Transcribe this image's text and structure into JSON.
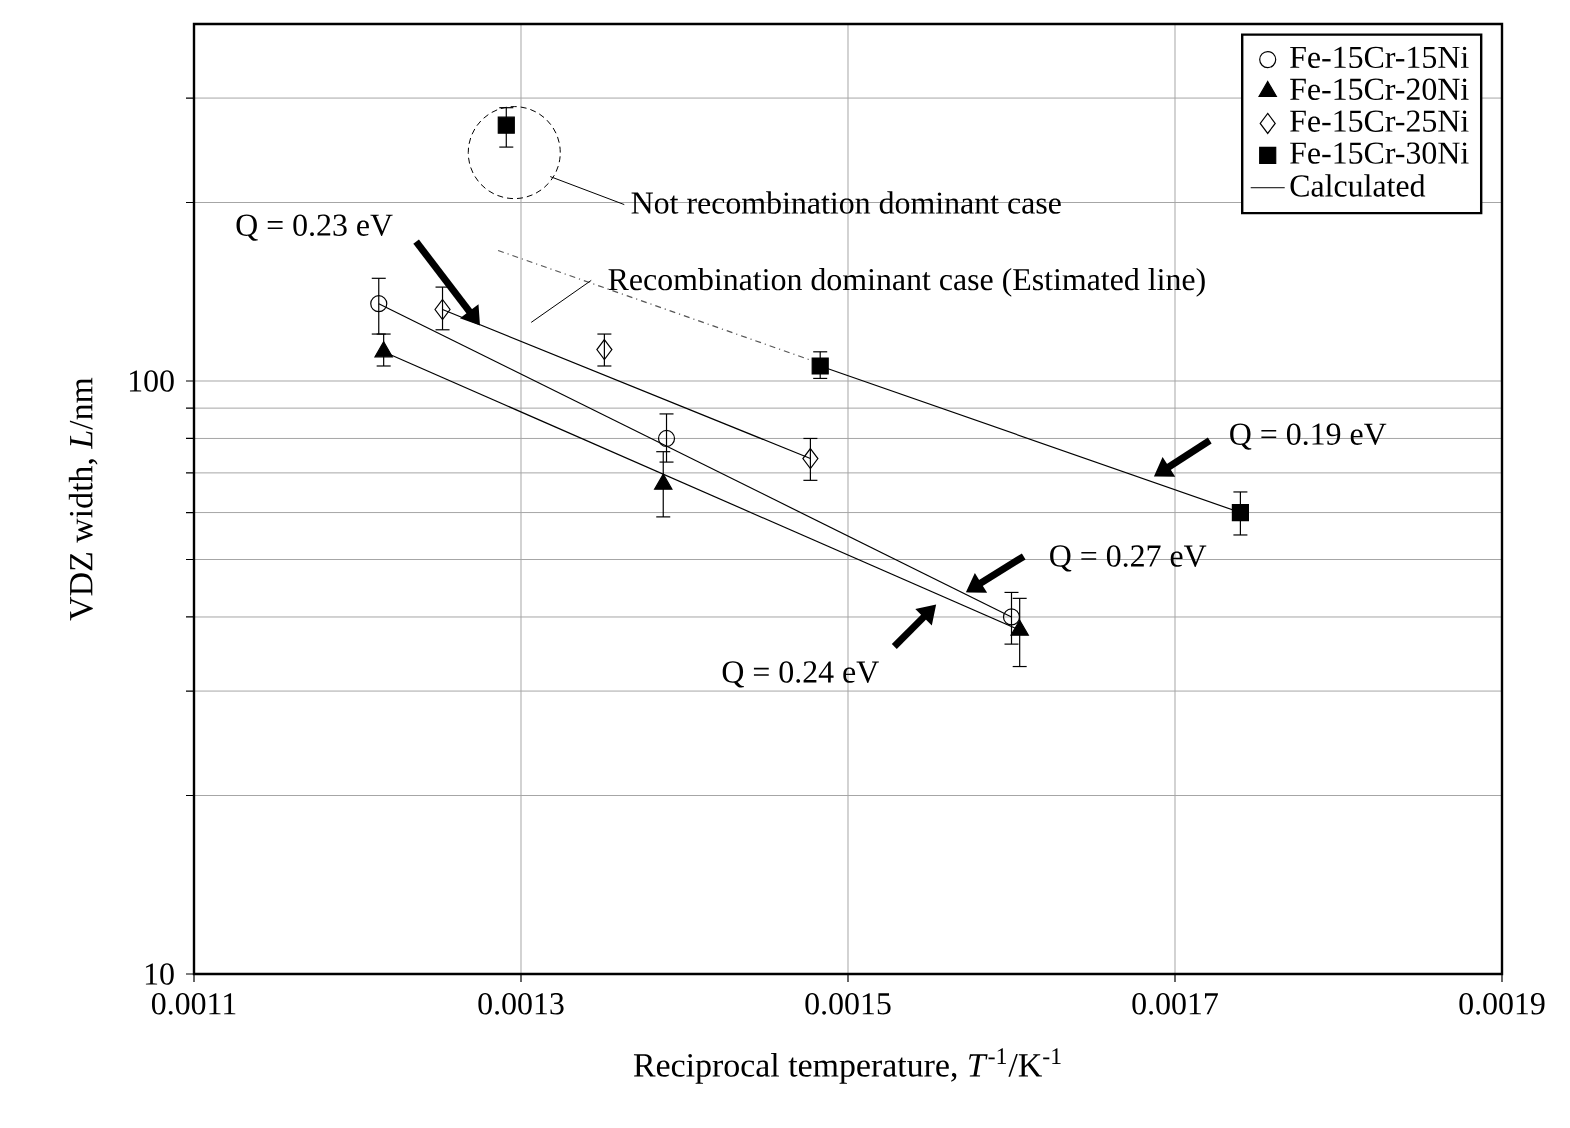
{
  "chart_data": {
    "type": "scatter",
    "xlabel": "Reciprocal temperature, *T*$^{-1}$/K$^{-1}$",
    "ylabel": "VDZ width, *L*/nm",
    "log": "y",
    "grid": true,
    "legend": "top right",
    "xlim": [
      0.0011,
      0.0019
    ],
    "xticks": [
      0.0011,
      0.0013,
      0.0015,
      0.0017,
      0.0019
    ],
    "ylim": [
      10,
      400
    ],
    "yticks": [
      {
        "value": 10,
        "label": "10"
      },
      {
        "value": 20,
        "label": null
      },
      {
        "value": 30,
        "label": null
      },
      {
        "value": 40,
        "label": null
      },
      {
        "value": 50,
        "label": null
      },
      {
        "value": 60,
        "label": null
      },
      {
        "value": 70,
        "label": null
      },
      {
        "value": 80,
        "label": null
      },
      {
        "value": 90,
        "label": null
      },
      {
        "value": 100,
        "label": "100"
      },
      {
        "value": 200,
        "label": null
      },
      {
        "value": 300,
        "label": null
      }
    ],
    "series": [
      {
        "name": "Fe-15Cr-15Ni",
        "marker": "circle",
        "color": "#000000",
        "x": [
          0.001213,
          0.001389,
          0.0016
        ],
        "values": [
          135,
          80,
          40
        ],
        "errors": [
          [
            120,
            149
          ],
          [
            73,
            88
          ],
          [
            36,
            44
          ]
        ]
      },
      {
        "name": "Fe-15Cr-20Ni",
        "marker": "triangle",
        "color": "#000000",
        "x": [
          0.001216,
          0.001387,
          0.001605
        ],
        "values": [
          112,
          67,
          38
        ],
        "errors": [
          [
            106,
            120
          ],
          [
            59,
            76
          ],
          [
            33,
            43
          ]
        ]
      },
      {
        "name": "Fe-15Cr-25Ni",
        "marker": "diamond",
        "color": "#000000",
        "x": [
          0.001252,
          0.001351,
          0.001477
        ],
        "values": [
          132,
          113,
          74
        ],
        "errors": [
          [
            122,
            144
          ],
          [
            106,
            120
          ],
          [
            68,
            80
          ]
        ]
      },
      {
        "name": "Fe-15Cr-30Ni",
        "marker": "square",
        "color": "#000000",
        "x": [
          0.001291,
          0.001483,
          0.00174
        ],
        "values": [
          270,
          106,
          60
        ],
        "errors": [
          [
            248,
            289
          ],
          [
            101,
            112
          ],
          [
            55,
            65
          ]
        ]
      },
      {
        "name": "Calculated",
        "type": "line",
        "marker": "none",
        "color": "#000000",
        "x": [
          0.001213,
          0.0016
        ],
        "values": [
          135,
          40
        ]
      },
      {
        "type": "line",
        "marker": "none",
        "color": "#000000",
        "x": [
          0.001216,
          0.001605
        ],
        "values": [
          112,
          38
        ]
      },
      {
        "type": "line",
        "marker": "none",
        "color": "#000000",
        "x": [
          0.001252,
          0.001477
        ],
        "values": [
          132,
          74
        ]
      },
      {
        "type": "line",
        "marker": "none",
        "color": "#000000",
        "x": [
          0.001483,
          0.00174
        ],
        "values": [
          106,
          60
        ]
      },
      {
        "type": "line",
        "marker": "none",
        "color": "#555555",
        "line_style": "dashdot",
        "x": [
          0.001286,
          0.001479
        ],
        "values": [
          166,
          108
        ]
      }
    ],
    "annotations": [
      "Not recombination dominant case",
      "Recombination dominant case (Estimated line)",
      {
        "text": "Q = 0.23 eV",
        "x": 0.001275,
        "y": 124
      },
      {
        "text": "Q = 0.19 eV",
        "x": 0.001687,
        "y": 69
      },
      {
        "text": "Q = 0.27 eV",
        "x": 0.001572,
        "y": 44
      },
      {
        "text": "Q = 0.24 eV",
        "x": 0.001554,
        "y": 42
      }
    ]
  }
}
